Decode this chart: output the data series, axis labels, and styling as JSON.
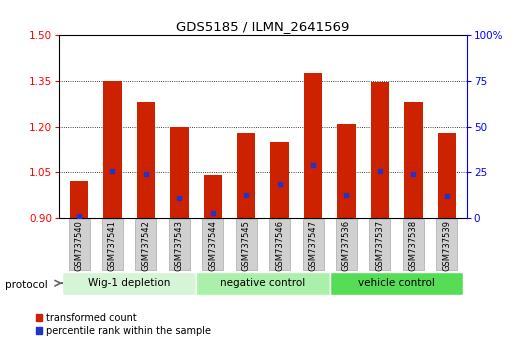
{
  "title": "GDS5185 / ILMN_2641569",
  "samples": [
    "GSM737540",
    "GSM737541",
    "GSM737542",
    "GSM737543",
    "GSM737544",
    "GSM737545",
    "GSM737546",
    "GSM737547",
    "GSM737536",
    "GSM737537",
    "GSM737538",
    "GSM737539"
  ],
  "red_values": [
    1.02,
    1.35,
    1.28,
    1.2,
    1.04,
    1.18,
    1.15,
    1.375,
    1.21,
    1.345,
    1.28,
    1.18
  ],
  "blue_values": [
    0.905,
    1.055,
    1.045,
    0.965,
    0.915,
    0.975,
    1.01,
    1.075,
    0.975,
    1.055,
    1.045,
    0.97
  ],
  "ylim_left": [
    0.9,
    1.5
  ],
  "ylim_right": [
    0,
    100
  ],
  "yticks_left": [
    0.9,
    1.05,
    1.2,
    1.35,
    1.5
  ],
  "yticks_right": [
    0,
    25,
    50,
    75,
    100
  ],
  "groups": [
    {
      "label": "Wig-1 depletion",
      "start": 0,
      "end": 4,
      "color": "#d6f5d6"
    },
    {
      "label": "negative control",
      "start": 4,
      "end": 8,
      "color": "#aaf0aa"
    },
    {
      "label": "vehicle control",
      "start": 8,
      "end": 12,
      "color": "#55dd55"
    }
  ],
  "bar_color": "#cc2200",
  "blue_color": "#2233cc",
  "bar_width": 0.55,
  "baseline": 0.9,
  "legend_red": "transformed count",
  "legend_blue": "percentile rank within the sample",
  "protocol_label": "protocol",
  "plot_bg": "#ffffff",
  "label_box_color": "#d0d0d0",
  "label_box_edge": "#aaaaaa"
}
